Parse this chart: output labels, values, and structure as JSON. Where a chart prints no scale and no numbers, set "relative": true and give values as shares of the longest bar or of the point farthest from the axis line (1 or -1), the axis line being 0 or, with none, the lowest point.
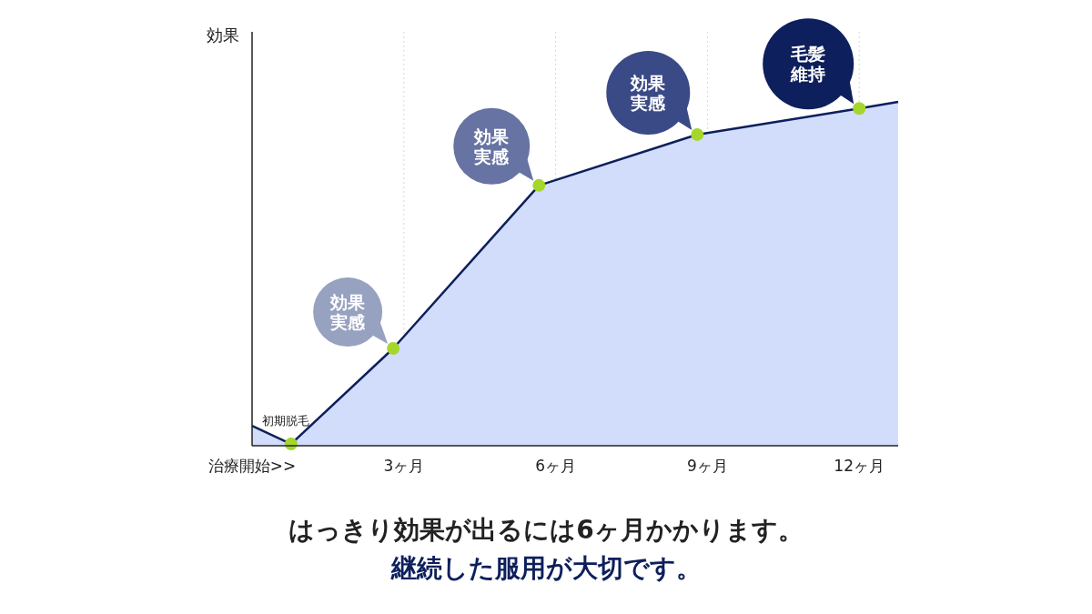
{
  "chart_data": {
    "type": "area",
    "relative": true,
    "ylabel": "効果",
    "x": [
      0,
      0.77,
      2.79,
      5.67,
      8.8,
      12,
      12.77
    ],
    "xlim": [
      0,
      12.77
    ],
    "xticks": [
      {
        "value": 0,
        "label": "治療開始>>"
      },
      {
        "value": 3,
        "label": "3ヶ月"
      },
      {
        "value": 6,
        "label": "6ヶ月"
      },
      {
        "value": 9,
        "label": "9ヶ月"
      },
      {
        "value": 12,
        "label": "12ヶ月"
      }
    ],
    "grid": "x",
    "line_style": "solid",
    "series": [
      {
        "color": "#0d1f5c",
        "values": [
          0.058,
          0.005,
          0.283,
          0.757,
          0.905,
          0.981,
          1
        ]
      },
      {
        "type": "scatter",
        "color": "#a5d62b",
        "marker": "circle",
        "x": [
          0.77,
          2.79,
          5.67,
          8.8,
          12
        ],
        "values": [
          0.005,
          0.283,
          0.757,
          0.905,
          0.981
        ]
      }
    ],
    "annotations": [
      {
        "text": "初期脱毛",
        "x": 0.6,
        "y": 0.019
      },
      {
        "text": "効果実感",
        "x": 2.79,
        "y": 0.283
      },
      {
        "text": "効果実感",
        "x": 5.67,
        "y": 0.757
      },
      {
        "text": "効果実感",
        "x": 8.8,
        "y": 0.905
      },
      {
        "text": "毛髪維持",
        "x": 12,
        "y": 0.981
      },
      "はっきり効果が出るには6ヶ月かかります。",
      "継続した服用が大切です。"
    ]
  }
}
